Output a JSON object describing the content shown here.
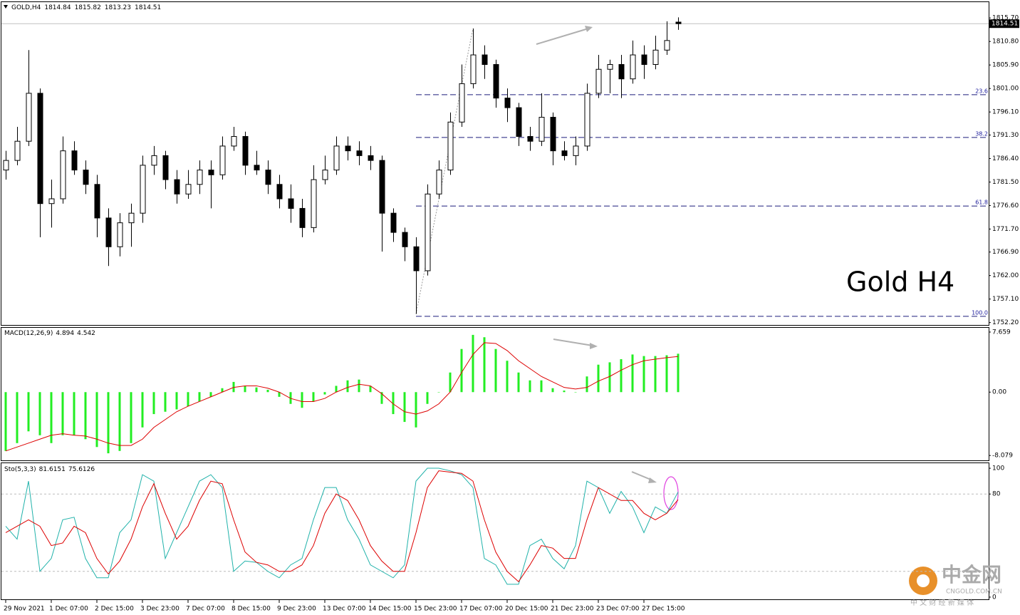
{
  "chart_data": [
    {
      "type": "candlestick",
      "title": "GOLD,H4",
      "annotation": "Gold H4",
      "categories": [
        "29 Nov 2021",
        null,
        null,
        null,
        "1 Dec 07:00",
        null,
        null,
        null,
        "2 Dec 15:00",
        null,
        null,
        null,
        "3 Dec 23:00",
        null,
        null,
        null,
        "7 Dec 07:00",
        null,
        null,
        null,
        "8 Dec 15:00",
        null,
        null,
        null,
        "9 Dec 23:00",
        null,
        null,
        null,
        "13 Dec 07:00",
        null,
        null,
        null,
        "14 Dec 15:00",
        null,
        null,
        null,
        "15 Dec 23:00",
        null,
        null,
        null,
        "17 Dec 07:00",
        null,
        null,
        null,
        "20 Dec 15:00",
        null,
        null,
        null,
        "21 Dec 23:00",
        null,
        null,
        null,
        "23 Dec 07:00",
        null,
        null,
        null,
        "27 Dec 15:00",
        null,
        null,
        null
      ],
      "open": [
        1784,
        1786,
        1790,
        1800,
        1777,
        1778,
        1788,
        1784,
        1781,
        1774,
        1768,
        1773,
        1775,
        1785,
        1787,
        1782,
        1779,
        1781,
        1784,
        1783,
        1789,
        1791,
        1785,
        1784,
        1781,
        1778,
        1776,
        1772,
        1782,
        1784,
        1789,
        1788,
        1787,
        1786,
        1775,
        1771,
        1768,
        1763,
        1779,
        1784,
        1794,
        1802,
        1808,
        1806,
        1799,
        1797,
        1791,
        1790,
        1795,
        1788,
        1787,
        1789,
        1800,
        1805,
        1806,
        1803,
        1808,
        1806,
        1809,
        1814.84
      ],
      "high": [
        1788,
        1793,
        1809,
        1801,
        1782,
        1791,
        1790,
        1786,
        1783,
        1776,
        1775,
        1777,
        1787,
        1789,
        1788,
        1784,
        1784,
        1786,
        1786,
        1791,
        1793,
        1792,
        1788,
        1786,
        1783,
        1781,
        1778,
        1785,
        1787,
        1791,
        1791,
        1790,
        1789,
        1787,
        1776,
        1772,
        1770,
        1781,
        1786,
        1796,
        1806,
        1813.5,
        1810,
        1807,
        1801,
        1798,
        1793,
        1800,
        1796,
        1790,
        1791,
        1802,
        1808,
        1807,
        1808,
        1811,
        1810,
        1812,
        1815,
        1815.82
      ],
      "low": [
        1782,
        1785,
        1789,
        1770,
        1772,
        1777,
        1783,
        1779,
        1770,
        1764,
        1766,
        1768,
        1773,
        1783,
        1780,
        1777,
        1778,
        1779,
        1776,
        1782,
        1788,
        1783,
        1783,
        1779,
        1776,
        1773,
        1770,
        1771,
        1781,
        1783,
        1786,
        1785,
        1784,
        1767,
        1769,
        1765,
        1754,
        1762,
        1778,
        1783,
        1793,
        1801,
        1803,
        1797,
        1794,
        1789,
        1788,
        1789,
        1785,
        1786,
        1785,
        1788,
        1799,
        1800,
        1799,
        1802,
        1803,
        1805,
        1808,
        1813.23
      ],
      "close": [
        1786,
        1790,
        1800,
        1777,
        1778,
        1788,
        1784,
        1781,
        1774,
        1768,
        1773,
        1775,
        1785,
        1787,
        1782,
        1779,
        1781,
        1784,
        1783,
        1789,
        1791,
        1785,
        1784,
        1781,
        1778,
        1776,
        1772,
        1782,
        1784,
        1789,
        1788,
        1787,
        1786,
        1775,
        1771,
        1768,
        1763,
        1779,
        1784,
        1794,
        1802,
        1808,
        1806,
        1799,
        1797,
        1791,
        1790,
        1795,
        1788,
        1787,
        1789,
        1800,
        1805,
        1806,
        1803,
        1808,
        1806,
        1809,
        1811,
        1814.51
      ],
      "fib_levels": [
        {
          "label": "23.6",
          "price": 1799.7
        },
        {
          "label": "38.2",
          "price": 1790.8
        },
        {
          "label": "61.8",
          "price": 1776.5
        },
        {
          "label": "100.0",
          "price": 1753.5
        }
      ],
      "ylim": [
        1751.7,
        1819.0
      ],
      "yticks": [
        {
          "value": 1815.7,
          "label": "1815.70"
        },
        {
          "value": 1810.8,
          "label": "1810.80"
        },
        {
          "value": 1805.9,
          "label": "1805.90"
        },
        {
          "value": 1801,
          "label": "1801.00"
        },
        {
          "value": 1796.1,
          "label": "1796.10"
        },
        {
          "value": 1791.3,
          "label": "1791.30"
        },
        {
          "value": 1786.4,
          "label": "1786.40"
        },
        {
          "value": 1781.5,
          "label": "1781.50"
        },
        {
          "value": 1776.6,
          "label": "1776.60"
        },
        {
          "value": 1771.7,
          "label": "1771.70"
        },
        {
          "value": 1766.9,
          "label": "1766.90"
        },
        {
          "value": 1762,
          "label": "1762.00"
        },
        {
          "value": 1757.1,
          "label": "1757.10"
        },
        {
          "value": 1752.2,
          "label": "1752.20"
        }
      ]
    },
    {
      "type": "macd",
      "title": "MACD(12,26,9)",
      "histogram": {
        "color": "#22ee22",
        "values": [
          -7.5,
          -6.5,
          -5,
          -5.5,
          -6.5,
          -5.5,
          -5.5,
          -6,
          -7,
          -7.8,
          -7.5,
          -6.5,
          -4.5,
          -2.8,
          -2.5,
          -2.2,
          -1.8,
          -1.2,
          -0.6,
          0.5,
          1.3,
          0.8,
          0.6,
          0.3,
          -0.6,
          -1.5,
          -2,
          -1.2,
          -0.3,
          0.8,
          1.5,
          1.6,
          0.8,
          -1.5,
          -2.8,
          -3.8,
          -4.5,
          -1.5,
          0,
          2.5,
          5.5,
          7.3,
          7,
          5.5,
          4,
          2.5,
          1.5,
          1.5,
          0.5,
          0.2,
          0,
          2,
          3.5,
          3.8,
          4.2,
          4.8,
          4.6,
          4.6,
          4.7,
          4.894
        ]
      },
      "signal": {
        "color": "#dd0000",
        "values": [
          -7.5,
          -7,
          -6.5,
          -6,
          -5.5,
          -5.3,
          -5.5,
          -5.6,
          -6,
          -6.5,
          -6.8,
          -6.8,
          -6,
          -4.5,
          -3.5,
          -2.5,
          -1.8,
          -1.2,
          -0.6,
          0,
          0.6,
          0.8,
          0.8,
          0.5,
          0,
          -0.8,
          -1.2,
          -1.2,
          -0.8,
          0,
          0.6,
          1,
          0.8,
          -0.2,
          -1.5,
          -2.5,
          -2.8,
          -2.4,
          -1.5,
          0,
          2.5,
          4.8,
          6.3,
          6.2,
          5.3,
          4,
          3,
          2,
          1.3,
          0.6,
          0.4,
          0.6,
          1.4,
          2,
          2.8,
          3.5,
          4,
          4.2,
          4.4,
          4.542
        ]
      },
      "ylim": [
        -8.7,
        8.2
      ],
      "yticks": [
        7.659,
        {
          "value": 0,
          "label": "0.00"
        },
        -8.079
      ]
    },
    {
      "type": "stochastic",
      "title": "Sto(5,3,3)",
      "main": {
        "color": "#20b2aa",
        "values": [
          55,
          45,
          90,
          20,
          30,
          60,
          62,
          30,
          15,
          15,
          50,
          60,
          95,
          90,
          30,
          50,
          70,
          90,
          95,
          85,
          20,
          28,
          27,
          20,
          15,
          25,
          30,
          60,
          85,
          85,
          60,
          45,
          25,
          20,
          15,
          25,
          90,
          100,
          100,
          98,
          95,
          85,
          30,
          25,
          10,
          10,
          40,
          45,
          30,
          22,
          40,
          90,
          85,
          65,
          82,
          70,
          50,
          70,
          65,
          81.6151
        ]
      },
      "signal": {
        "color": "#dd0000",
        "values": [
          50,
          55,
          60,
          55,
          40,
          42,
          55,
          50,
          30,
          18,
          28,
          45,
          70,
          88,
          65,
          45,
          55,
          75,
          90,
          88,
          60,
          35,
          27,
          25,
          20,
          20,
          25,
          40,
          65,
          80,
          75,
          60,
          40,
          28,
          20,
          20,
          50,
          85,
          98,
          97,
          96,
          90,
          60,
          35,
          20,
          12,
          25,
          40,
          38,
          30,
          30,
          60,
          85,
          80,
          75,
          75,
          65,
          60,
          65,
          75.6126
        ]
      },
      "levels": [
        80,
        20
      ],
      "ylim": [
        -1.7,
        103.9
      ],
      "yticks": [
        100,
        80,
        0
      ]
    }
  ],
  "watermark": {
    "brand": "中金网",
    "site": "CNGOLD.COM.CN",
    "slogan": "中 文 财 经 新 媒 体"
  }
}
